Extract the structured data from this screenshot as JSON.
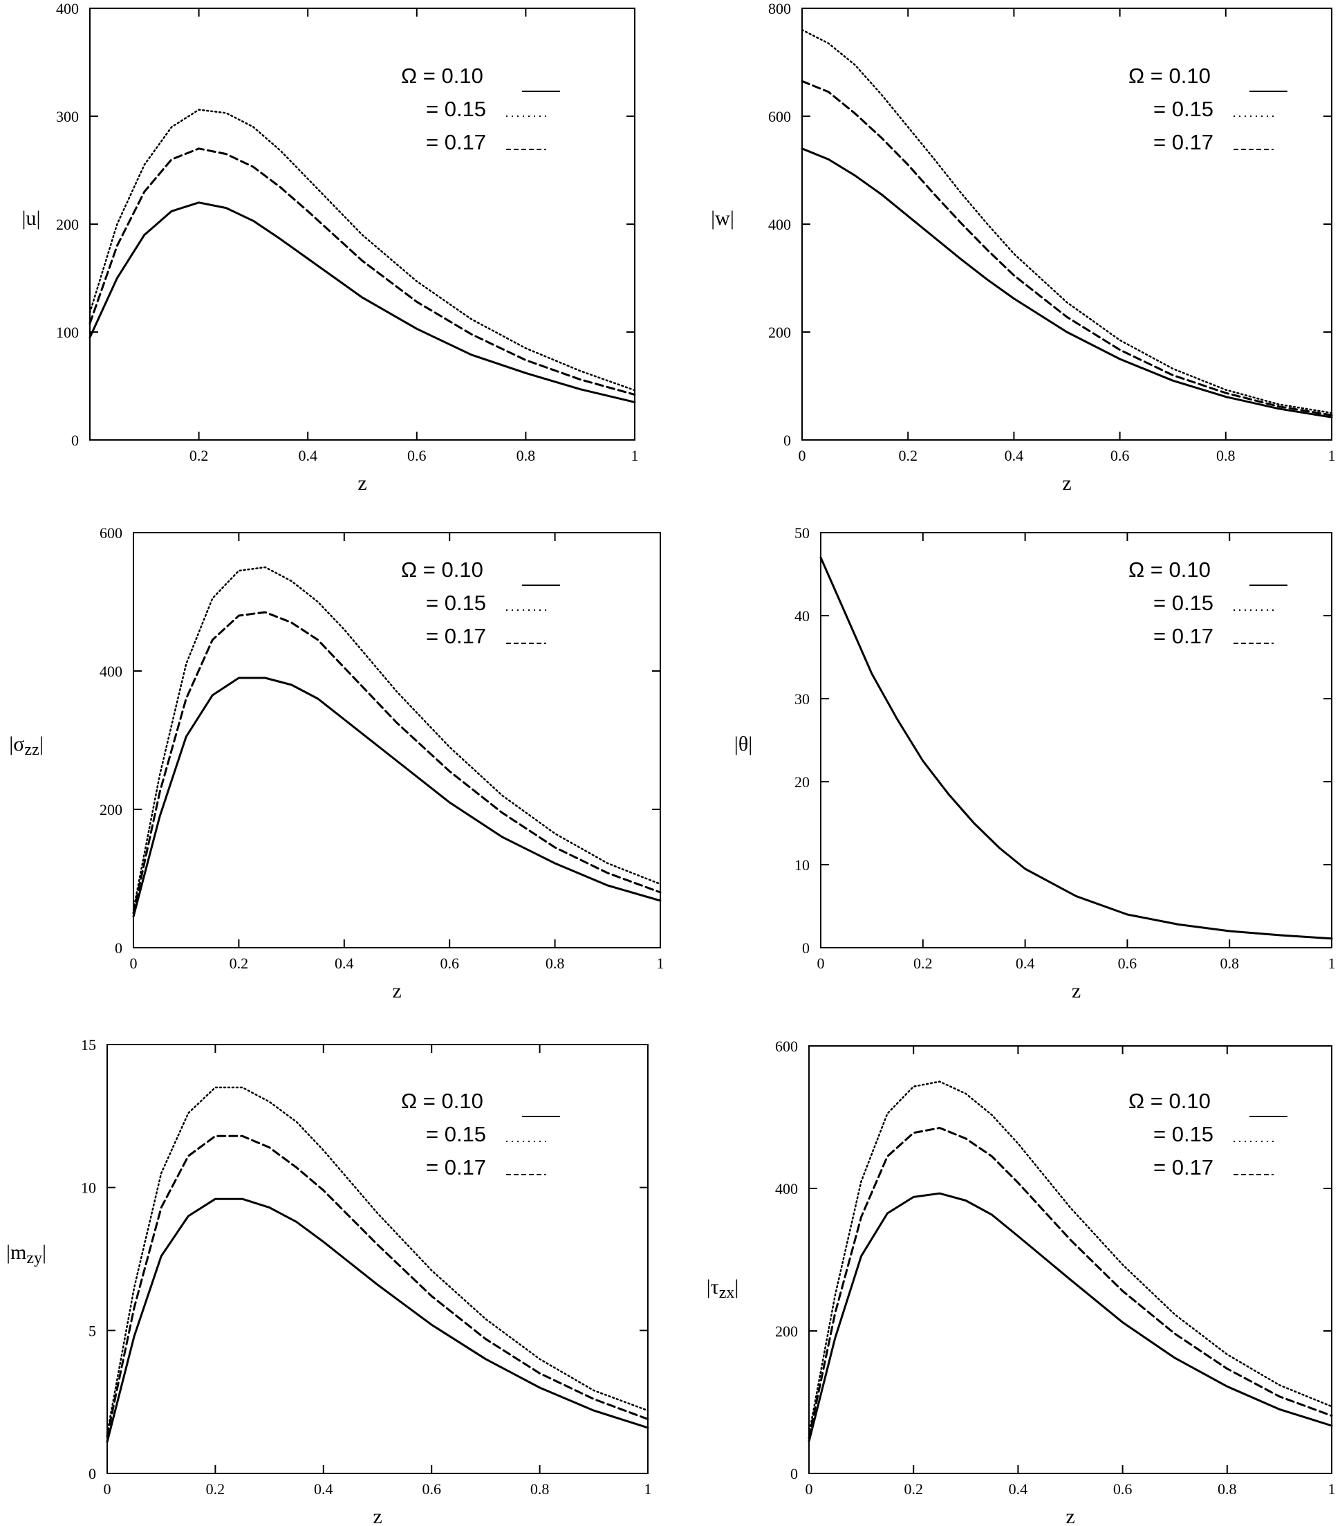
{
  "legend": [
    {
      "label": "Ω = 0.10",
      "style": "solid"
    },
    {
      "label": "= 0.15",
      "style": "dotted"
    },
    {
      "label": "= 0.17",
      "style": "dashed"
    }
  ],
  "chart_data": [
    {
      "id": "u",
      "type": "line",
      "ylabel": "u",
      "ysub": "",
      "xlabel": "z",
      "xlim": [
        0,
        1
      ],
      "ylim": [
        0,
        400
      ],
      "xticks": [
        "0.2",
        "0.4",
        "0.6",
        "0.8",
        "1"
      ],
      "yticks": [
        "0",
        "100",
        "200",
        "300",
        "400"
      ],
      "x": [
        0.0,
        0.05,
        0.1,
        0.15,
        0.2,
        0.25,
        0.3,
        0.35,
        0.4,
        0.5,
        0.6,
        0.7,
        0.8,
        0.9,
        1.0
      ],
      "series": [
        {
          "name": "Ω = 0.10",
          "style": "solid",
          "values": [
            95,
            150,
            190,
            212,
            220,
            215,
            203,
            186,
            168,
            132,
            103,
            79,
            62,
            47,
            35
          ]
        },
        {
          "name": "= 0.15",
          "style": "dotted",
          "values": [
            118,
            200,
            255,
            290,
            306,
            303,
            290,
            268,
            242,
            190,
            147,
            112,
            85,
            64,
            46
          ]
        },
        {
          "name": "= 0.17",
          "style": "dashed",
          "values": [
            108,
            180,
            230,
            260,
            270,
            265,
            253,
            234,
            212,
            166,
            128,
            98,
            74,
            56,
            42
          ]
        }
      ]
    },
    {
      "id": "w",
      "type": "line",
      "ylabel": "w",
      "ysub": "",
      "xlabel": "z",
      "xlim": [
        0,
        1
      ],
      "ylim": [
        0,
        800
      ],
      "xticks": [
        "0",
        "0.2",
        "0.4",
        "0.6",
        "0.8",
        "1"
      ],
      "yticks": [
        "0",
        "200",
        "400",
        "600",
        "800"
      ],
      "x": [
        0.0,
        0.05,
        0.1,
        0.15,
        0.2,
        0.25,
        0.3,
        0.35,
        0.4,
        0.5,
        0.6,
        0.7,
        0.8,
        0.9,
        1.0
      ],
      "series": [
        {
          "name": "Ω = 0.10",
          "style": "solid",
          "values": [
            540,
            520,
            490,
            455,
            415,
            375,
            335,
            297,
            262,
            200,
            150,
            110,
            80,
            58,
            42
          ]
        },
        {
          "name": "= 0.15",
          "style": "dotted",
          "values": [
            760,
            735,
            695,
            640,
            580,
            520,
            458,
            400,
            345,
            255,
            185,
            132,
            93,
            66,
            50
          ]
        },
        {
          "name": "= 0.17",
          "style": "dashed",
          "values": [
            665,
            645,
            605,
            560,
            510,
            455,
            402,
            352,
            305,
            228,
            167,
            120,
            87,
            62,
            46
          ]
        }
      ]
    },
    {
      "id": "szz",
      "type": "line",
      "ylabel": "σ",
      "ysub": "zz",
      "xlabel": "z",
      "xlim": [
        0,
        1
      ],
      "ylim": [
        0,
        600
      ],
      "xticks": [
        "0",
        "0.2",
        "0.4",
        "0.6",
        "0.8",
        "1"
      ],
      "yticks": [
        "0",
        "200",
        "400",
        "600"
      ],
      "x": [
        0.0,
        0.05,
        0.1,
        0.15,
        0.2,
        0.25,
        0.3,
        0.35,
        0.4,
        0.5,
        0.6,
        0.7,
        0.8,
        0.9,
        1.0
      ],
      "series": [
        {
          "name": "Ω = 0.10",
          "style": "solid",
          "values": [
            45,
            190,
            305,
            365,
            390,
            390,
            380,
            360,
            330,
            270,
            210,
            160,
            122,
            90,
            68
          ]
        },
        {
          "name": "= 0.15",
          "style": "dotted",
          "values": [
            55,
            250,
            410,
            505,
            545,
            550,
            530,
            500,
            460,
            370,
            290,
            220,
            165,
            122,
            92
          ]
        },
        {
          "name": "= 0.17",
          "style": "dashed",
          "values": [
            50,
            225,
            360,
            445,
            480,
            485,
            470,
            445,
            405,
            325,
            255,
            195,
            145,
            108,
            80
          ]
        }
      ]
    },
    {
      "id": "theta",
      "type": "line",
      "ylabel": "θ",
      "ysub": "",
      "xlabel": "z",
      "xlim": [
        0,
        1
      ],
      "ylim": [
        0,
        50
      ],
      "xticks": [
        "0",
        "0.2",
        "0.4",
        "0.6",
        "0.8",
        "1"
      ],
      "yticks": [
        "0",
        "10",
        "20",
        "30",
        "40",
        "50"
      ],
      "x": [
        0.0,
        0.05,
        0.1,
        0.15,
        0.2,
        0.25,
        0.3,
        0.35,
        0.4,
        0.5,
        0.6,
        0.7,
        0.8,
        0.9,
        1.0
      ],
      "series": [
        {
          "name": "Ω = 0.10",
          "style": "solid",
          "values": [
            47,
            40,
            33,
            27.5,
            22.5,
            18.5,
            15,
            12,
            9.5,
            6.2,
            4.0,
            2.8,
            2.0,
            1.5,
            1.1
          ]
        }
      ]
    },
    {
      "id": "mzy",
      "type": "line",
      "ylabel": "m",
      "ysub": "zy",
      "xlabel": "z",
      "xlim": [
        0,
        1
      ],
      "ylim": [
        0,
        15
      ],
      "xticks": [
        "0",
        "0.2",
        "0.4",
        "0.6",
        "0.8",
        "1"
      ],
      "yticks": [
        "0",
        "5",
        "10",
        "15"
      ],
      "x": [
        0.0,
        0.05,
        0.1,
        0.15,
        0.2,
        0.25,
        0.3,
        0.35,
        0.4,
        0.5,
        0.6,
        0.7,
        0.8,
        0.9,
        1.0
      ],
      "series": [
        {
          "name": "Ω = 0.10",
          "style": "solid",
          "values": [
            1.1,
            4.8,
            7.6,
            9.0,
            9.6,
            9.6,
            9.3,
            8.8,
            8.1,
            6.6,
            5.2,
            4.0,
            3.0,
            2.2,
            1.6
          ]
        },
        {
          "name": "= 0.15",
          "style": "dotted",
          "values": [
            1.4,
            6.5,
            10.5,
            12.6,
            13.5,
            13.5,
            13.0,
            12.3,
            11.3,
            9.1,
            7.1,
            5.4,
            4.0,
            2.9,
            2.2
          ]
        },
        {
          "name": "= 0.17",
          "style": "dashed",
          "values": [
            1.3,
            5.8,
            9.3,
            11.1,
            11.8,
            11.8,
            11.4,
            10.7,
            9.9,
            8.0,
            6.2,
            4.7,
            3.5,
            2.6,
            1.9
          ]
        }
      ]
    },
    {
      "id": "tzx",
      "type": "line",
      "ylabel": "τ",
      "ysub": "zx",
      "xlabel": "z",
      "xlim": [
        0,
        1
      ],
      "ylim": [
        0,
        600
      ],
      "xticks": [
        "0",
        "0.2",
        "0.4",
        "0.6",
        "0.8",
        "1"
      ],
      "yticks": [
        "0",
        "200",
        "400",
        "600"
      ],
      "x": [
        0.0,
        0.05,
        0.1,
        0.15,
        0.2,
        0.25,
        0.3,
        0.35,
        0.4,
        0.5,
        0.6,
        0.7,
        0.8,
        0.9,
        1.0
      ],
      "series": [
        {
          "name": "Ω = 0.10",
          "style": "solid",
          "values": [
            45,
            190,
            305,
            365,
            388,
            393,
            383,
            363,
            333,
            272,
            212,
            162,
            122,
            90,
            67
          ]
        },
        {
          "name": "= 0.15",
          "style": "dotted",
          "values": [
            55,
            250,
            410,
            505,
            543,
            550,
            533,
            503,
            463,
            373,
            293,
            223,
            167,
            124,
            94
          ]
        },
        {
          "name": "= 0.17",
          "style": "dashed",
          "values": [
            50,
            225,
            360,
            445,
            478,
            485,
            470,
            445,
            408,
            328,
            256,
            196,
            147,
            108,
            81
          ]
        }
      ]
    }
  ]
}
